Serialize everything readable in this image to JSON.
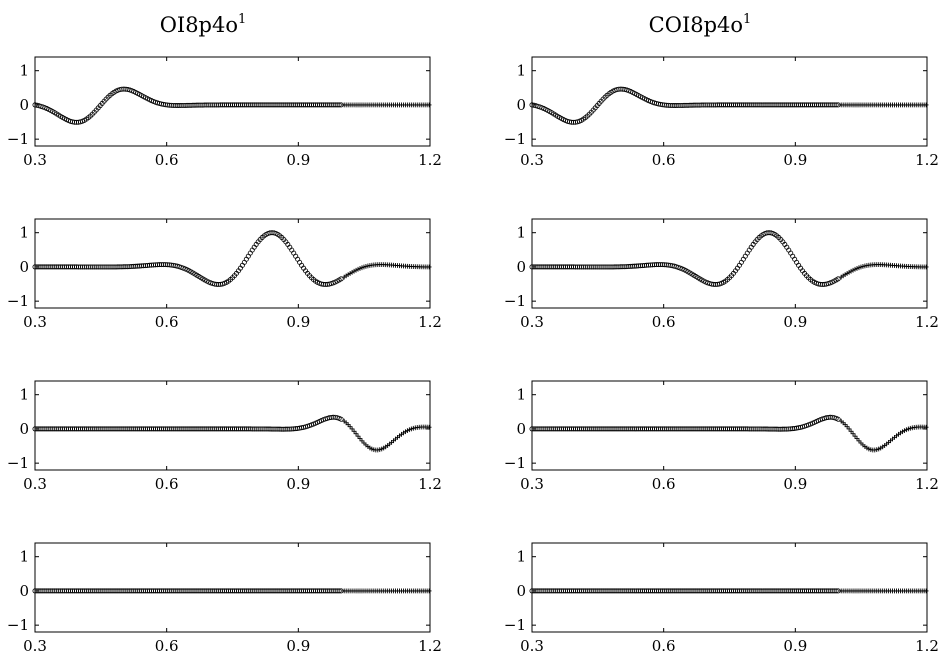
{
  "figure": {
    "columns": [
      {
        "title_base": "OI8p4o",
        "title_sup": "1"
      },
      {
        "title_base": "COI8p4o",
        "title_sup": "1"
      }
    ]
  },
  "chart_data": [
    {
      "type": "scatter",
      "panel": "col1-row1",
      "title": "OI8p4o¹",
      "xlim": [
        0.3,
        1.2
      ],
      "ylim": [
        -1.2,
        1.4
      ],
      "xticks": [
        0.3,
        0.6,
        0.9,
        1.2
      ],
      "xtick_labels": [
        "0.3",
        "0.6",
        "0.9",
        "1.2"
      ],
      "yticks": [
        -1,
        0,
        1
      ],
      "ytick_labels": [
        "−1",
        "0",
        "1"
      ],
      "grid": false,
      "markers": {
        "circle": {
          "x_range": [
            0.3,
            1.0
          ]
        },
        "plus": {
          "x_range": [
            1.0,
            1.2
          ]
        }
      },
      "wave_packet": {
        "center": 0.445,
        "width": 0.105,
        "wavelength": 0.3,
        "amplitude": -0.7,
        "peak_x": 0.375
      }
    },
    {
      "type": "scatter",
      "panel": "col1-row2",
      "xlim": [
        0.3,
        1.2
      ],
      "ylim": [
        -1.2,
        1.4
      ],
      "xticks": [
        0.3,
        0.6,
        0.9,
        1.2
      ],
      "xtick_labels": [
        "0.3",
        "0.6",
        "0.9",
        "1.2"
      ],
      "yticks": [
        -1,
        0,
        1
      ],
      "ytick_labels": [
        "−1",
        "0",
        "1"
      ],
      "grid": false,
      "markers": {
        "circle": {
          "x_range": [
            0.3,
            1.0
          ]
        },
        "plus": {
          "x_range": [
            1.0,
            1.2
          ]
        }
      },
      "wave_packet": {
        "center": 0.84,
        "width": 0.16,
        "wavelength": 0.28,
        "amplitude": 1.0,
        "peak_x": 0.84
      }
    },
    {
      "type": "scatter",
      "panel": "col1-row3",
      "xlim": [
        0.3,
        1.2
      ],
      "ylim": [
        -1.2,
        1.4
      ],
      "xticks": [
        0.3,
        0.6,
        0.9,
        1.2
      ],
      "xtick_labels": [
        "0.3",
        "0.6",
        "0.9",
        "1.2"
      ],
      "yticks": [
        -1,
        0,
        1
      ],
      "ytick_labels": [
        "−1",
        "0",
        "1"
      ],
      "grid": false,
      "markers": {
        "circle": {
          "x_range": [
            0.3,
            1.0
          ]
        },
        "plus": {
          "x_range": [
            1.0,
            1.2
          ]
        }
      },
      "wave_packet": {
        "center": 1.05,
        "width": 0.095,
        "wavelength": 0.27,
        "amplitude": -0.7,
        "peak_x": 1.09
      }
    },
    {
      "type": "scatter",
      "panel": "col1-row4",
      "xlim": [
        0.3,
        1.2
      ],
      "ylim": [
        -1.2,
        1.4
      ],
      "xticks": [
        0.3,
        0.6,
        0.9,
        1.2
      ],
      "xtick_labels": [
        "0.3",
        "0.6",
        "0.9",
        "1.2"
      ],
      "yticks": [
        -1,
        0,
        1
      ],
      "ytick_labels": [
        "−1",
        "0",
        "1"
      ],
      "grid": false,
      "markers": {
        "circle": {
          "x_range": [
            0.3,
            1.0
          ]
        },
        "plus": {
          "x_range": [
            1.0,
            1.2
          ]
        }
      },
      "wave_packet": {
        "center": 0.75,
        "width": 0.1,
        "wavelength": 0.28,
        "amplitude": 0,
        "peak_x": 0.75
      }
    },
    {
      "type": "scatter",
      "panel": "col2-row1",
      "title": "COI8p4o¹",
      "xlim": [
        0.3,
        1.2
      ],
      "ylim": [
        -1.2,
        1.4
      ],
      "xticks": [
        0.3,
        0.6,
        0.9,
        1.2
      ],
      "xtick_labels": [
        "0.3",
        "0.6",
        "0.9",
        "1.2"
      ],
      "yticks": [
        -1,
        0,
        1
      ],
      "ytick_labels": [
        "−1",
        "0",
        "1"
      ],
      "grid": false,
      "markers": {
        "circle": {
          "x_range": [
            0.3,
            1.0
          ]
        },
        "plus": {
          "x_range": [
            1.0,
            1.2
          ]
        }
      },
      "wave_packet": {
        "center": 0.445,
        "width": 0.105,
        "wavelength": 0.3,
        "amplitude": -0.7,
        "peak_x": 0.375
      }
    },
    {
      "type": "scatter",
      "panel": "col2-row2",
      "xlim": [
        0.3,
        1.2
      ],
      "ylim": [
        -1.2,
        1.4
      ],
      "xticks": [
        0.3,
        0.6,
        0.9,
        1.2
      ],
      "xtick_labels": [
        "0.3",
        "0.6",
        "0.9",
        "1.2"
      ],
      "yticks": [
        -1,
        0,
        1
      ],
      "ytick_labels": [
        "−1",
        "0",
        "1"
      ],
      "grid": false,
      "markers": {
        "circle": {
          "x_range": [
            0.3,
            1.0
          ]
        },
        "plus": {
          "x_range": [
            1.0,
            1.2
          ]
        }
      },
      "wave_packet": {
        "center": 0.84,
        "width": 0.16,
        "wavelength": 0.28,
        "amplitude": 1.0,
        "peak_x": 0.84
      }
    },
    {
      "type": "scatter",
      "panel": "col2-row3",
      "xlim": [
        0.3,
        1.2
      ],
      "ylim": [
        -1.2,
        1.4
      ],
      "xticks": [
        0.3,
        0.6,
        0.9,
        1.2
      ],
      "xtick_labels": [
        "0.3",
        "0.6",
        "0.9",
        "1.2"
      ],
      "yticks": [
        -1,
        0,
        1
      ],
      "ytick_labels": [
        "−1",
        "0",
        "1"
      ],
      "grid": false,
      "markers": {
        "circle": {
          "x_range": [
            0.3,
            1.0
          ]
        },
        "plus": {
          "x_range": [
            1.0,
            1.2
          ]
        }
      },
      "wave_packet": {
        "center": 1.05,
        "width": 0.095,
        "wavelength": 0.27,
        "amplitude": -0.7,
        "peak_x": 1.09
      }
    },
    {
      "type": "scatter",
      "panel": "col2-row4",
      "xlim": [
        0.3,
        1.2
      ],
      "ylim": [
        -1.2,
        1.4
      ],
      "xticks": [
        0.3,
        0.6,
        0.9,
        1.2
      ],
      "xtick_labels": [
        "0.3",
        "0.6",
        "0.9",
        "1.2"
      ],
      "yticks": [
        -1,
        0,
        1
      ],
      "ytick_labels": [
        "−1",
        "0",
        "1"
      ],
      "grid": false,
      "markers": {
        "circle": {
          "x_range": [
            0.3,
            1.0
          ]
        },
        "plus": {
          "x_range": [
            1.0,
            1.2
          ]
        }
      },
      "wave_packet": {
        "center": 0.75,
        "width": 0.1,
        "wavelength": 0.28,
        "amplitude": 0,
        "peak_x": 0.75
      }
    }
  ]
}
